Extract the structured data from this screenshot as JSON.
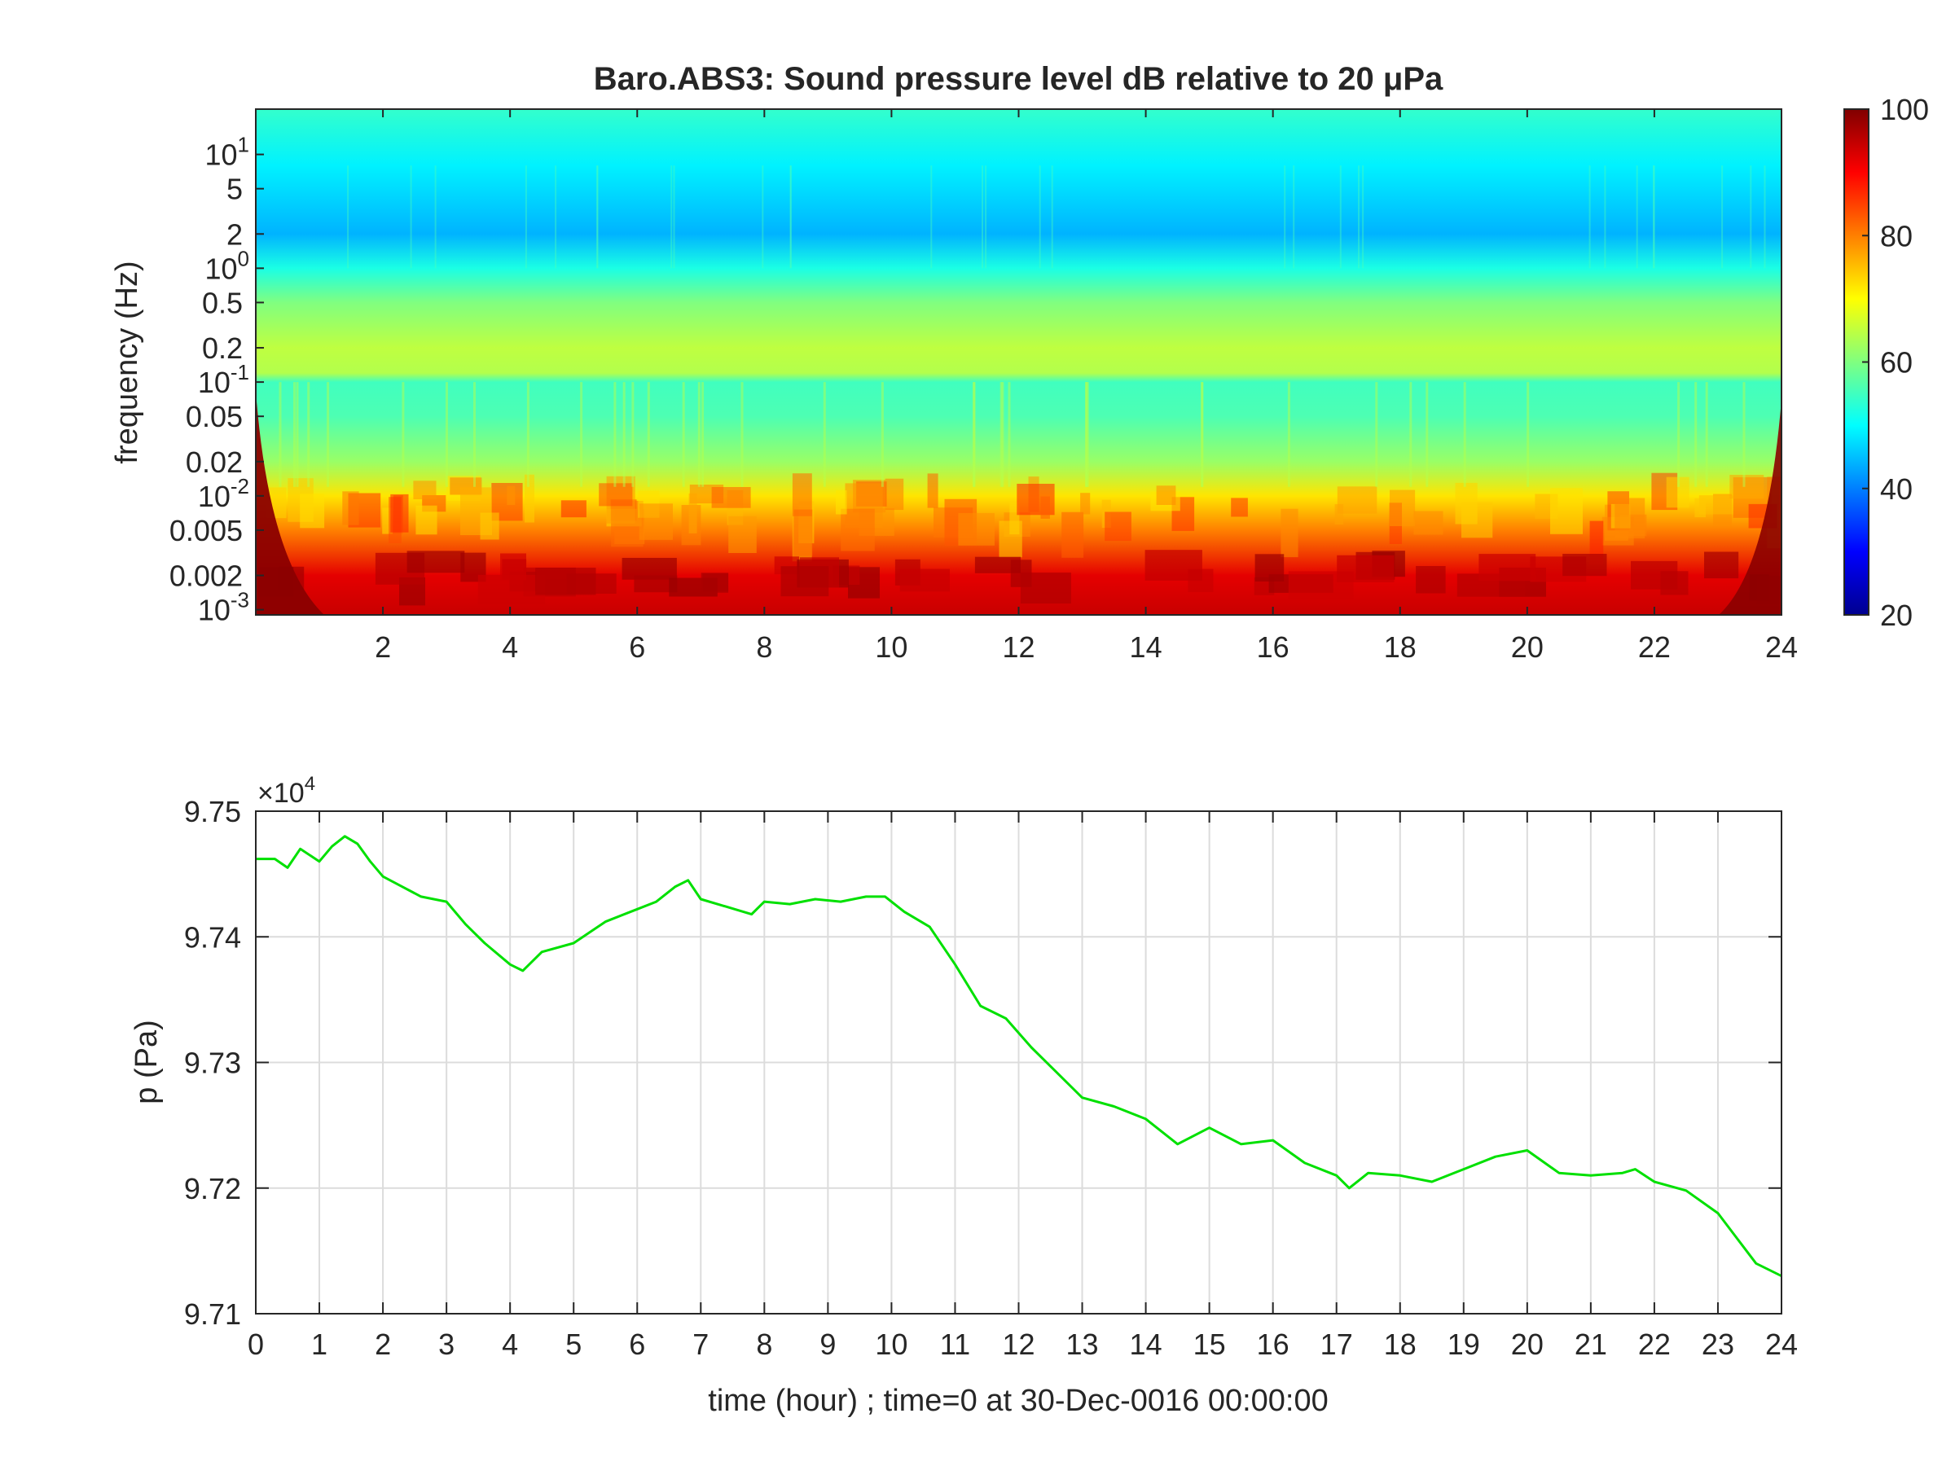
{
  "chart_data": [
    {
      "type": "heatmap",
      "title": "Baro.ABS3: Sound pressure level dB relative to 20 μPa",
      "xlabel": "",
      "ylabel": "frequency (Hz)",
      "xlim": [
        0,
        24
      ],
      "ylim": [
        0.0009,
        25
      ],
      "yscale": "log",
      "x_ticks": [
        2,
        4,
        6,
        8,
        10,
        12,
        14,
        16,
        18,
        20,
        22,
        24
      ],
      "x_tick_labels": [
        "2",
        "4",
        "6",
        "8",
        "10",
        "12",
        "14",
        "16",
        "18",
        "20",
        "22",
        "24"
      ],
      "y_ticks": [
        {
          "value": 0.001,
          "label": "10",
          "exp": "-3"
        },
        {
          "value": 0.002,
          "label": "0.002"
        },
        {
          "value": 0.005,
          "label": "0.005"
        },
        {
          "value": 0.01,
          "label": "10",
          "exp": "-2"
        },
        {
          "value": 0.02,
          "label": "0.02"
        },
        {
          "value": 0.05,
          "label": "0.05"
        },
        {
          "value": 0.1,
          "label": "10",
          "exp": "-1"
        },
        {
          "value": 0.2,
          "label": "0.2"
        },
        {
          "value": 0.5,
          "label": "0.5"
        },
        {
          "value": 1,
          "label": "10",
          "exp": "0"
        },
        {
          "value": 2,
          "label": "2"
        },
        {
          "value": 5,
          "label": "5"
        },
        {
          "value": 10,
          "label": "10",
          "exp": "1"
        }
      ],
      "colorbar": {
        "colormap": "jet",
        "clim": [
          20,
          100
        ],
        "ticks": [
          20,
          40,
          60,
          80,
          100
        ],
        "tick_labels": [
          "20",
          "40",
          "60",
          "80",
          "100"
        ]
      },
      "spectral_profile_db": [
        {
          "freq": 25,
          "db": 54
        },
        {
          "freq": 8,
          "db": 49
        },
        {
          "freq": 2,
          "db": 44
        },
        {
          "freq": 1,
          "db": 52
        },
        {
          "freq": 0.5,
          "db": 60
        },
        {
          "freq": 0.2,
          "db": 65
        },
        {
          "freq": 0.12,
          "db": 64
        },
        {
          "freq": 0.1,
          "db": 55
        },
        {
          "freq": 0.05,
          "db": 56
        },
        {
          "freq": 0.02,
          "db": 62
        },
        {
          "freq": 0.01,
          "db": 72
        },
        {
          "freq": 0.005,
          "db": 80
        },
        {
          "freq": 0.002,
          "db": 92
        },
        {
          "freq": 0.001,
          "db": 94
        }
      ]
    },
    {
      "type": "line",
      "title": "",
      "xlabel": "time (hour) ; time=0 at 30-Dec-0016 00:00:00",
      "ylabel": "p (Pa)",
      "y_exponent_label": "×10",
      "y_exponent": "4",
      "xlim": [
        0,
        24
      ],
      "ylim": [
        97100,
        97500
      ],
      "grid": true,
      "x_ticks": [
        0,
        1,
        2,
        3,
        4,
        5,
        6,
        7,
        8,
        9,
        10,
        11,
        12,
        13,
        14,
        15,
        16,
        17,
        18,
        19,
        20,
        21,
        22,
        23,
        24
      ],
      "x_tick_labels": [
        "0",
        "1",
        "2",
        "3",
        "4",
        "5",
        "6",
        "7",
        "8",
        "9",
        "10",
        "11",
        "12",
        "13",
        "14",
        "15",
        "16",
        "17",
        "18",
        "19",
        "20",
        "21",
        "22",
        "23",
        "24"
      ],
      "y_ticks": [
        97100,
        97200,
        97300,
        97400,
        97500
      ],
      "y_tick_labels": [
        "9.71",
        "9.72",
        "9.73",
        "9.74",
        "9.75"
      ],
      "color": "#00e000",
      "series": [
        {
          "x": [
            0,
            0.3,
            0.5,
            0.7,
            1.0,
            1.2,
            1.4,
            1.6,
            1.8,
            2.0,
            2.3,
            2.6,
            3.0,
            3.3,
            3.6,
            4.0,
            4.2,
            4.5,
            5.0,
            5.5,
            6.0,
            6.3,
            6.6,
            6.8,
            7.0,
            7.4,
            7.8,
            8.0,
            8.4,
            8.8,
            9.2,
            9.6,
            9.9,
            10.2,
            10.6,
            11.0,
            11.4,
            11.8,
            12.2,
            12.6,
            13.0,
            13.5,
            14.0,
            14.5,
            15.0,
            15.5,
            16.0,
            16.5,
            17.0,
            17.2,
            17.5,
            18.0,
            18.5,
            19.0,
            19.5,
            20.0,
            20.5,
            21.0,
            21.5,
            21.7,
            22.0,
            22.5,
            23.0,
            23.3,
            23.6,
            24.0
          ],
          "y": [
            97462,
            97462,
            97455,
            97470,
            97460,
            97472,
            97480,
            97474,
            97460,
            97448,
            97440,
            97432,
            97428,
            97410,
            97395,
            97378,
            97373,
            97388,
            97395,
            97412,
            97422,
            97428,
            97440,
            97445,
            97430,
            97424,
            97418,
            97428,
            97426,
            97430,
            97428,
            97432,
            97432,
            97420,
            97408,
            97378,
            97345,
            97335,
            97312,
            97292,
            97272,
            97265,
            97255,
            97235,
            97248,
            97235,
            97238,
            97220,
            97210,
            97200,
            97212,
            97210,
            97205,
            97215,
            97225,
            97230,
            97212,
            97210,
            97212,
            97215,
            97205,
            97198,
            97180,
            97160,
            97140,
            97130
          ]
        }
      ]
    }
  ]
}
